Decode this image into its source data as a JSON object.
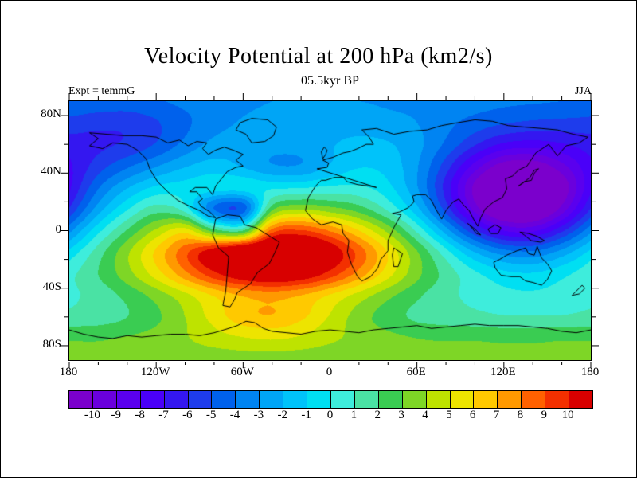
{
  "chart_data": {
    "type": "heatmap",
    "title": "Velocity Potential at 200 hPa (km2/s)",
    "subtitle": "05.5kyr BP",
    "annotations": {
      "left": "Expt = temmG",
      "right": "JJA"
    },
    "x_axis": {
      "tick_labels": [
        "180",
        "120W",
        "60W",
        "0",
        "60E",
        "120E",
        "180"
      ],
      "tick_lons": [
        -180,
        -120,
        -60,
        0,
        60,
        120,
        180
      ],
      "minor_tick_lons": [
        -160,
        -140,
        -100,
        -80,
        -40,
        -20,
        20,
        40,
        80,
        100,
        140,
        160
      ],
      "range": [
        -180,
        180
      ]
    },
    "y_axis": {
      "tick_labels": [
        "80N",
        "40N",
        "0",
        "40S",
        "80S"
      ],
      "tick_lats": [
        80,
        40,
        0,
        -40,
        -80
      ],
      "minor_tick_lats": [
        60,
        20,
        -20,
        -60
      ],
      "range": [
        -90,
        90
      ]
    },
    "colorbar": {
      "levels": [
        -10,
        -9,
        -8,
        -7,
        -6,
        -5,
        -4,
        -3,
        -2,
        -1,
        0,
        1,
        2,
        3,
        4,
        5,
        6,
        7,
        8,
        9,
        10
      ],
      "labels": [
        "-10",
        "-9",
        "-8",
        "-7",
        "-6",
        "-5",
        "-4",
        "-3",
        "-2",
        "-1",
        "0",
        "1",
        "2",
        "3",
        "4",
        "5",
        "6",
        "7",
        "8",
        "9",
        "10"
      ],
      "colors": [
        "#7B00CC",
        "#6A00DD",
        "#5A00EE",
        "#4A00F8",
        "#3417F0",
        "#1E3CEC",
        "#0061EC",
        "#0084F2",
        "#00A5F6",
        "#00C3FA",
        "#00DFF2",
        "#3EEDDC",
        "#4AE2A4",
        "#3ACC52",
        "#7ED626",
        "#BEE300",
        "#EDE400",
        "#FFC900",
        "#FF9900",
        "#FF6100",
        "#F33000",
        "#D80000"
      ]
    },
    "grid": {
      "lons": [
        -180,
        -160,
        -140,
        -120,
        -100,
        -80,
        -60,
        -40,
        -20,
        0,
        20,
        40,
        60,
        80,
        100,
        120,
        140,
        160,
        180
      ],
      "lats": [
        90,
        75,
        60,
        45,
        30,
        15,
        0,
        -15,
        -30,
        -45,
        -60,
        -75,
        -90
      ],
      "values": [
        [
          -4.1,
          -4.3,
          -4.4,
          -4.1,
          -3.8,
          -3.5,
          -3.2,
          -3.0,
          -3.0,
          -3.0,
          -3.0,
          -3.1,
          -3.2,
          -3.4,
          -3.6,
          -3.8,
          -3.9,
          -4.0,
          -4.1
        ],
        [
          -5.4,
          -5.7,
          -5.7,
          -5.1,
          -4.2,
          -3.4,
          -2.9,
          -2.7,
          -2.6,
          -2.5,
          -2.5,
          -2.7,
          -3.0,
          -3.7,
          -4.4,
          -4.9,
          -5.2,
          -5.3,
          -5.4
        ],
        [
          -6.5,
          -6.2,
          -5.8,
          -4.9,
          -3.7,
          -2.7,
          -2.5,
          -2.7,
          -2.6,
          -2.1,
          -1.7,
          -1.9,
          -2.7,
          -4.2,
          -5.9,
          -7.2,
          -7.5,
          -7.1,
          -6.5
        ],
        [
          -7.2,
          -5.5,
          -4.2,
          -3.1,
          -2.1,
          -1.6,
          -2.1,
          -2.9,
          -2.9,
          -1.9,
          -1.1,
          -1.4,
          -2.9,
          -5.5,
          -8.4,
          -10.6,
          -10.8,
          -9.3,
          -7.2
        ],
        [
          -7.2,
          -4.1,
          -2.1,
          -0.8,
          -0.5,
          -0.5,
          -0.5,
          -0.2,
          -0.1,
          0.2,
          0.2,
          -0.7,
          -2.9,
          -6.4,
          -10.3,
          -13.1,
          -13.2,
          -10.8,
          -7.2
        ],
        [
          -5.9,
          -2.5,
          -0.1,
          1.5,
          0.5,
          -4.0,
          -4.5,
          2.7,
          3.9,
          3.4,
          2.5,
          0.8,
          -1.7,
          -5.4,
          -9.4,
          -12.1,
          -12.2,
          -9.6,
          -5.9
        ],
        [
          -3.3,
          -0.3,
          2.1,
          4.2,
          5.5,
          2.5,
          2.0,
          8.4,
          9.1,
          7.9,
          6.0,
          3.7,
          0.8,
          -2.5,
          -5.8,
          -8.0,
          -8.2,
          -6.2,
          -3.3
        ],
        [
          -0.7,
          1.5,
          3.8,
          6.2,
          8.7,
          11.0,
          12.8,
          13.4,
          12.8,
          11.0,
          8.6,
          5.9,
          3.1,
          0.4,
          -2.0,
          -3.5,
          -3.8,
          -2.6,
          -0.7
        ],
        [
          0.7,
          2.0,
          3.6,
          5.5,
          7.7,
          9.7,
          11.1,
          11.7,
          11.1,
          9.6,
          7.6,
          5.4,
          3.3,
          1.6,
          0.2,
          -0.7,
          -0.9,
          -0.3,
          0.7
        ],
        [
          0.8,
          1.4,
          2.3,
          3.4,
          4.7,
          6.1,
          7.1,
          7.4,
          7.0,
          5.9,
          4.6,
          3.3,
          2.2,
          1.3,
          0.7,
          0.3,
          0.2,
          0.4,
          0.8
        ],
        [
          1.3,
          1.5,
          2.0,
          2.8,
          4.0,
          5.4,
          6.6,
          6.9,
          6.2,
          4.9,
          3.5,
          2.5,
          1.8,
          1.5,
          1.3,
          1.1,
          1.1,
          1.1,
          1.3
        ],
        [
          2.9,
          2.9,
          3.1,
          3.4,
          3.9,
          4.5,
          4.9,
          5.1,
          4.8,
          4.2,
          3.7,
          3.3,
          3.0,
          2.9,
          2.9,
          2.8,
          2.8,
          2.9,
          2.9
        ],
        [
          3.3,
          3.3,
          3.4,
          3.4,
          3.4,
          3.4,
          3.5,
          3.5,
          3.4,
          3.4,
          3.4,
          3.4,
          3.3,
          3.3,
          3.3,
          3.3,
          3.3,
          3.3,
          3.3
        ]
      ]
    }
  }
}
